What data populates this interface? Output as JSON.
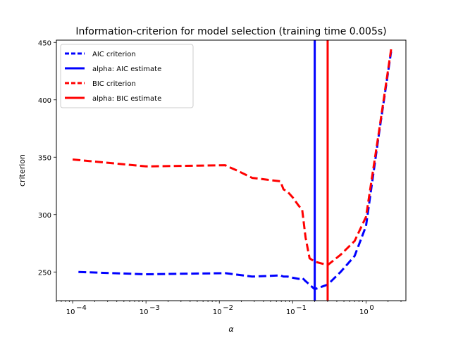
{
  "chart_data": {
    "type": "line",
    "title": "Information-criterion for model selection (training time 0.005s)",
    "xlabel": "α",
    "ylabel": "criterion",
    "xscale": "log",
    "xlim": [
      6e-05,
      3.5
    ],
    "ylim": [
      225,
      452
    ],
    "grid": false,
    "legend_position": "top-left",
    "x_ticks": [
      0.0001,
      0.001,
      0.01,
      0.1,
      1
    ],
    "x_tick_labels": [
      "10",
      "10",
      "10",
      "10",
      "10"
    ],
    "x_tick_exponents": [
      "−4",
      "−3",
      "−2",
      "−1",
      "0"
    ],
    "y_ticks": [
      250,
      300,
      350,
      400,
      450
    ],
    "y_tick_labels": [
      "250",
      "300",
      "350",
      "400",
      "450"
    ],
    "series": [
      {
        "name": "AIC criterion",
        "color": "#0000ff",
        "style": "dashed",
        "x": [
          0.00012,
          0.001,
          0.012,
          0.028,
          0.068,
          0.075,
          0.085,
          0.1,
          0.12,
          0.135,
          0.15,
          0.17,
          0.2,
          0.3,
          0.45,
          0.7,
          1.0,
          1.5,
          2.2
        ],
        "y": [
          250,
          248,
          249,
          246,
          247,
          246,
          246,
          245,
          244,
          245,
          242,
          239,
          235,
          239,
          250,
          264,
          290,
          370,
          442
        ]
      },
      {
        "name": "alpha: AIC estimate",
        "color": "#0000ff",
        "style": "solid",
        "vline_x": 0.2
      },
      {
        "name": "BIC criterion",
        "color": "#ff0000",
        "style": "dashed",
        "x": [
          0.0001,
          0.001,
          0.012,
          0.018,
          0.028,
          0.068,
          0.075,
          0.085,
          0.1,
          0.12,
          0.135,
          0.15,
          0.17,
          0.2,
          0.3,
          0.45,
          0.7,
          1.0,
          1.5,
          2.2
        ],
        "y": [
          348,
          342,
          343,
          338,
          332,
          329,
          322,
          320,
          315,
          308,
          304,
          280,
          262,
          259,
          256,
          265,
          277,
          298,
          372,
          444
        ]
      },
      {
        "name": "alpha: BIC estimate",
        "color": "#ff0000",
        "style": "solid",
        "vline_x": 0.3
      }
    ]
  }
}
